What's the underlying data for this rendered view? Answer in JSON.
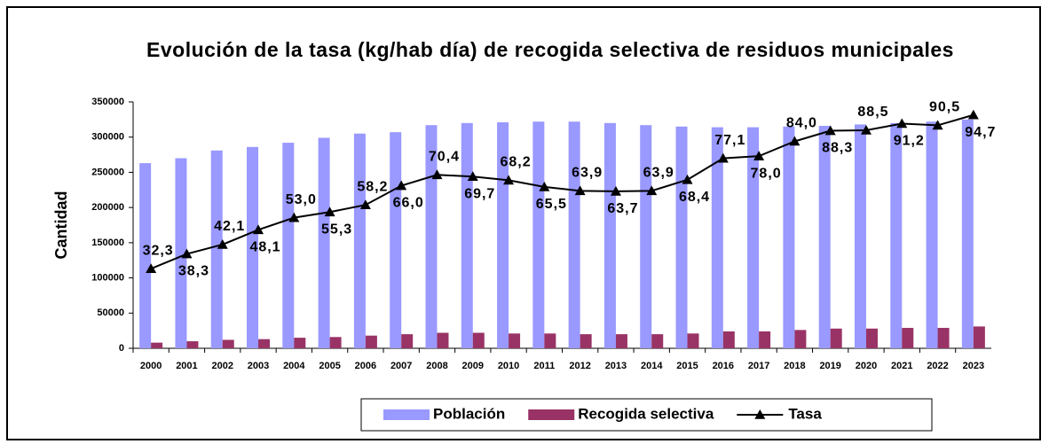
{
  "chart_data": {
    "type": "bar-line",
    "title": "Evolución de la tasa (kg/hab día) de recogida selectiva de residuos municipales",
    "y_label": "Cantidad",
    "categories": [
      "2000",
      "2001",
      "2002",
      "2003",
      "2004",
      "2005",
      "2006",
      "2007",
      "2008",
      "2009",
      "2010",
      "2011",
      "2012",
      "2013",
      "2014",
      "2015",
      "2016",
      "2017",
      "2018",
      "2019",
      "2020",
      "2021",
      "2022",
      "2023"
    ],
    "ylim": [
      0,
      350000
    ],
    "yticks": [
      0,
      50000,
      100000,
      150000,
      200000,
      250000,
      300000,
      350000
    ],
    "y2lim": [
      0,
      100
    ],
    "legend": "bottom",
    "series": [
      {
        "name": "Población",
        "type": "bar",
        "color": "#9999ff",
        "values": [
          263000,
          270000,
          281000,
          286000,
          292000,
          299000,
          305000,
          307000,
          317000,
          320000,
          321000,
          322000,
          322000,
          320000,
          317000,
          315000,
          314000,
          314000,
          315000,
          316000,
          318000,
          320000,
          322000,
          325000
        ]
      },
      {
        "name": "Recogida selectiva",
        "type": "bar",
        "color": "#993366",
        "values": [
          8000,
          10000,
          12000,
          13000,
          15000,
          16000,
          18000,
          20000,
          22000,
          22000,
          21000,
          21000,
          20000,
          20000,
          20000,
          21000,
          24000,
          24000,
          26000,
          28000,
          28000,
          29000,
          29000,
          31000
        ]
      },
      {
        "name": "Tasa",
        "type": "line",
        "color": "#000000",
        "axis": "y2",
        "values": [
          32.3,
          38.3,
          42.1,
          48.1,
          53.0,
          55.3,
          58.2,
          66.0,
          70.4,
          69.7,
          68.2,
          65.5,
          63.9,
          63.7,
          63.9,
          68.4,
          77.1,
          78.0,
          84.0,
          88.3,
          88.5,
          91.2,
          90.5,
          94.7
        ],
        "value_labels": [
          "32,3",
          "38,3",
          "42,1",
          "48,1",
          "53,0",
          "55,3",
          "58,2",
          "66,0",
          "70,4",
          "69,7",
          "68,2",
          "65,5",
          "63,9",
          "63,7",
          "63,9",
          "68,4",
          "77,1",
          "78,0",
          "84,0",
          "88,3",
          "88,5",
          "91,2",
          "90,5",
          "94,7"
        ]
      }
    ]
  }
}
